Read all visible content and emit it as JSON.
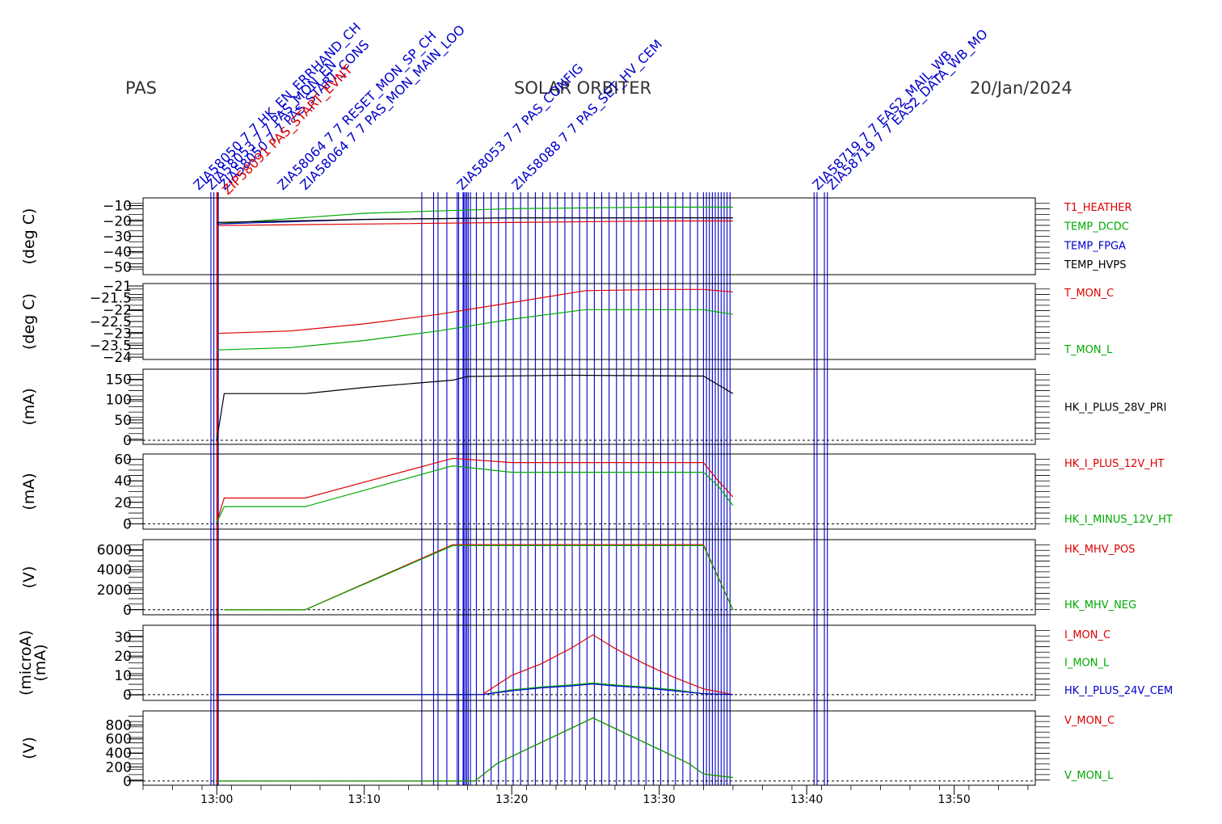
{
  "header": {
    "instrument": "PAS",
    "mission": "SOLAR ORBITER",
    "date": "20/Jan/2024"
  },
  "x_axis": {
    "ticks": [
      "13:00",
      "13:10",
      "13:20",
      "13:30",
      "13:40",
      "13:50"
    ]
  },
  "colors": {
    "red": "#dd0000",
    "green": "#00aa00",
    "blue": "#0000cc",
    "black": "#000000"
  },
  "events": [
    {
      "label": "ZIA58050 7 7 HK_EN_ERRHAND_CH",
      "color": "#0000cc"
    },
    {
      "label": "ZIA58053 7 7 PAS_MON_EN",
      "color": "#0000cc"
    },
    {
      "label": "ZIA58050 7 7 PAS_START_CONS",
      "color": "#0000cc"
    },
    {
      "label": "ZIP58091 PAS_START_EVNT",
      "color": "#dd0000"
    },
    {
      "label": "ZIA58064 7 7 RESET_MON_SP_CH",
      "color": "#0000cc"
    },
    {
      "label": "ZIA58064 7 7 PAS_MON_MAIN_LOO",
      "color": "#0000cc"
    },
    {
      "label": "ZIA58053 7 7 PAS_CONFIG",
      "color": "#0000cc"
    },
    {
      "label": "ZIA58088 7 7 PAS_SET_HV_CEM",
      "color": "#0000cc"
    },
    {
      "label": "ZIA58719 7 7 EAS2_MAIL_WB",
      "color": "#0000cc"
    },
    {
      "label": "ZIA58719 7 7 EAS2_DATA_WB_MO",
      "color": "#0000cc"
    }
  ],
  "chart_data": [
    {
      "type": "line",
      "ylabel": "(deg C)",
      "ylim": [
        -55,
        -5
      ],
      "y_ticks": [
        -10,
        -20,
        -30,
        -40,
        -50
      ],
      "x": [
        "13:00",
        "13:10",
        "13:20",
        "13:30",
        "13:35"
      ],
      "series": [
        {
          "name": "T1_HEATHER",
          "color": "#dd0000",
          "values": [
            -23,
            -22,
            -21,
            -20,
            -20
          ]
        },
        {
          "name": "TEMP_DCDC",
          "color": "#00aa00",
          "values": [
            -22,
            -15,
            -12,
            -11,
            -11
          ]
        },
        {
          "name": "TEMP_FPGA",
          "color": "#0000cc",
          "values": [
            -22,
            -19,
            -18,
            -18,
            -18
          ]
        },
        {
          "name": "TEMP_HVPS",
          "color": "#000000",
          "values": [
            -21,
            -19,
            -18,
            -18,
            -18
          ]
        }
      ]
    },
    {
      "type": "line",
      "ylabel": "(deg C)",
      "ylim": [
        -24.1,
        -20.9
      ],
      "y_ticks": [
        -21.0,
        -21.5,
        -22.0,
        -22.5,
        -23.0,
        -23.5,
        -24.0
      ],
      "x": [
        "13:00",
        "13:05",
        "13:10",
        "13:15",
        "13:20",
        "13:25",
        "13:30",
        "13:33",
        "13:35"
      ],
      "series": [
        {
          "name": "T_MON_C",
          "color": "#dd0000",
          "values": [
            -23.0,
            -22.9,
            -22.6,
            -22.2,
            -21.7,
            -21.2,
            -21.15,
            -21.15,
            -21.25
          ]
        },
        {
          "name": "T_MON_L",
          "color": "#00aa00",
          "values": [
            -23.7,
            -23.6,
            -23.3,
            -22.9,
            -22.4,
            -22.0,
            -22.0,
            -22.0,
            -22.2
          ]
        }
      ]
    },
    {
      "type": "line",
      "ylabel": "(mA)",
      "ylim": [
        -10,
        175
      ],
      "y_ticks": [
        150,
        100,
        50,
        0
      ],
      "x": [
        "12:59:58",
        "13:00",
        "13:00:30",
        "13:06",
        "13:10",
        "13:16",
        "13:17",
        "13:24",
        "13:33",
        "13:35"
      ],
      "series": [
        {
          "name": "HK_I_PLUS_28V_PRI",
          "color": "#000000",
          "values": [
            0,
            0,
            115,
            115,
            130,
            148,
            157,
            160,
            158,
            115
          ]
        }
      ]
    },
    {
      "type": "line",
      "ylabel": "(mA)",
      "ylim": [
        -5,
        65
      ],
      "y_ticks": [
        60,
        40,
        20,
        0
      ],
      "x": [
        "12:59:58",
        "13:00:30",
        "13:06",
        "13:16",
        "13:20",
        "13:33",
        "13:34",
        "13:35"
      ],
      "series": [
        {
          "name": "HK_I_PLUS_12V_HT",
          "color": "#dd0000",
          "values": [
            0,
            24,
            24,
            61,
            57,
            57,
            40,
            25
          ]
        },
        {
          "name": "HK_I_MINUS_12V_HT",
          "color": "#00aa00",
          "values": [
            0,
            16,
            16,
            54,
            48,
            48,
            35,
            17
          ]
        }
      ]
    },
    {
      "type": "line",
      "ylabel": "(V)",
      "ylim": [
        -500,
        7000
      ],
      "y_ticks": [
        6000,
        4000,
        2000,
        0
      ],
      "x": [
        "13:00:30",
        "13:06",
        "13:16",
        "13:33",
        "13:35"
      ],
      "series": [
        {
          "name": "HK_MHV_POS",
          "color": "#dd0000",
          "values": [
            0,
            0,
            6500,
            6500,
            0
          ]
        },
        {
          "name": "HK_MHV_NEG",
          "color": "#00aa00",
          "values": [
            0,
            0,
            6400,
            6400,
            0
          ]
        }
      ]
    },
    {
      "type": "line",
      "ylabel": "(microA)",
      "ylabel2": "(mA)",
      "ylim": [
        -3,
        36
      ],
      "y_ticks": [
        30,
        20,
        10,
        0
      ],
      "x": [
        "13:00",
        "13:18",
        "13:20",
        "13:22",
        "13:24",
        "13:25.5",
        "13:27",
        "13:29",
        "13:31",
        "13:33",
        "13:35"
      ],
      "series": [
        {
          "name": "I_MON_C",
          "color": "#dd0000",
          "values": [
            0,
            0,
            10,
            16,
            24,
            31,
            24,
            16,
            9,
            3,
            0
          ]
        },
        {
          "name": "I_MON_L",
          "color": "#00aa00",
          "values": [
            0,
            0,
            2.5,
            4,
            5,
            6,
            5,
            4,
            2.5,
            0.5,
            0
          ]
        },
        {
          "name": "HK_I_PLUS_24V_CEM",
          "color": "#0000cc",
          "values": [
            0,
            0,
            2,
            3.5,
            4.5,
            5.5,
            4.5,
            3.5,
            2,
            0.5,
            0
          ]
        }
      ]
    },
    {
      "type": "line",
      "ylabel": "(V)",
      "ylim": [
        -60,
        1000
      ],
      "y_ticks": [
        800,
        600,
        400,
        200,
        0
      ],
      "x": [
        "13:00",
        "13:17.5",
        "13:19",
        "13:21",
        "13:23",
        "13:25.5",
        "13:28",
        "13:30",
        "13:32",
        "13:33",
        "13:35"
      ],
      "series": [
        {
          "name": "V_MON_C",
          "color": "#dd0000",
          "values": [
            0,
            0,
            250,
            450,
            650,
            900,
            650,
            450,
            250,
            100,
            50
          ]
        },
        {
          "name": "V_MON_L",
          "color": "#00aa00",
          "values": [
            0,
            0,
            250,
            450,
            650,
            900,
            650,
            450,
            250,
            100,
            50
          ]
        }
      ]
    }
  ]
}
